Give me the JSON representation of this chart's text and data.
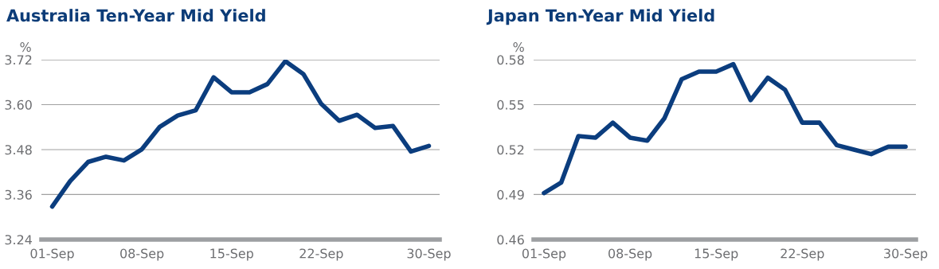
{
  "chart_data": [
    {
      "type": "line",
      "title": "Australia Ten-Year Mid Yield",
      "ylabel": "%",
      "categories": [
        "01-Sep",
        null,
        null,
        null,
        null,
        "08-Sep",
        null,
        null,
        null,
        null,
        "15-Sep",
        null,
        null,
        null,
        null,
        "22-Sep",
        null,
        null,
        null,
        null,
        null,
        "30-Sep"
      ],
      "series": [
        {
          "color": "#0b3d7e",
          "values": [
            3.328,
            3.396,
            3.447,
            3.461,
            3.451,
            3.481,
            3.541,
            3.571,
            3.585,
            3.673,
            3.633,
            3.633,
            3.655,
            3.716,
            3.682,
            3.602,
            3.557,
            3.573,
            3.538,
            3.543,
            3.475,
            3.49
          ]
        }
      ],
      "ylim": [
        3.24,
        3.72
      ],
      "yticks": [
        3.24,
        3.36,
        3.48,
        {
          "value": 3.6,
          "label": "3.60"
        },
        3.72
      ],
      "grid": "y",
      "marker": "none",
      "line_style": "solid"
    },
    {
      "type": "line",
      "title": "Japan Ten-Year Mid Yield",
      "ylabel": "%",
      "categories": [
        "01-Sep",
        null,
        null,
        null,
        null,
        "08-Sep",
        null,
        null,
        null,
        null,
        "15-Sep",
        null,
        null,
        null,
        null,
        "22-Sep",
        null,
        null,
        null,
        null,
        null,
        "30-Sep"
      ],
      "series": [
        {
          "color": "#0b3d7e",
          "values": [
            0.491,
            0.498,
            0.529,
            0.528,
            0.538,
            0.528,
            0.526,
            0.541,
            0.567,
            0.572,
            0.572,
            0.577,
            0.553,
            0.568,
            0.56,
            0.538,
            0.538,
            0.523,
            0.52,
            0.517,
            0.522,
            0.522
          ]
        }
      ],
      "ylim": [
        0.46,
        0.58
      ],
      "yticks": [
        0.46,
        0.49,
        0.52,
        0.55,
        0.58
      ],
      "grid": "y",
      "marker": "none",
      "line_style": "solid"
    }
  ]
}
